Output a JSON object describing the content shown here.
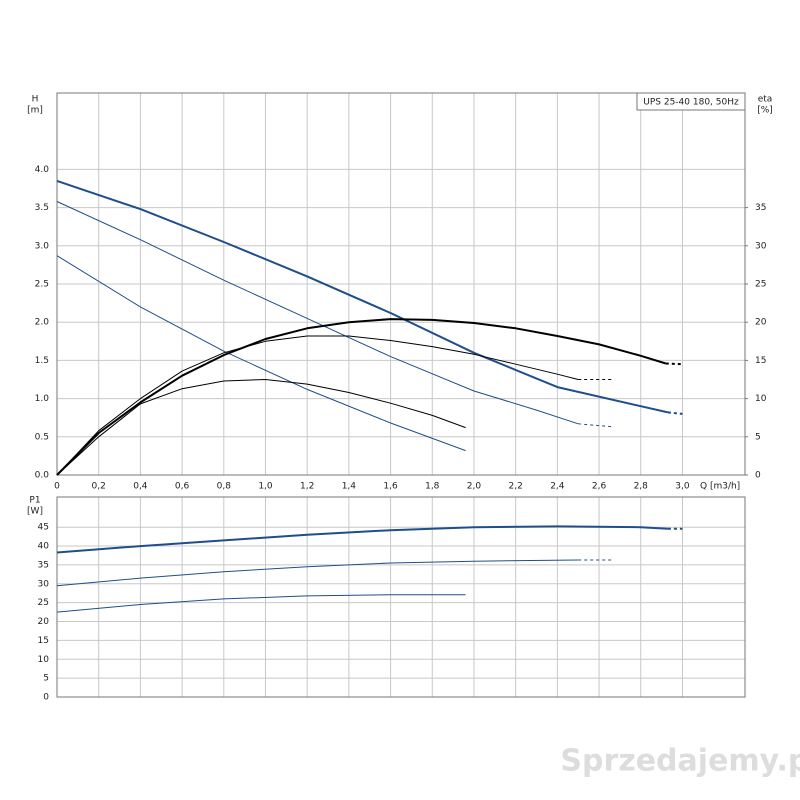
{
  "chart_data": [
    {
      "type": "line",
      "legend_label": "UPS 25-40 180, 50Hz",
      "y_label": "H",
      "y_unit": "[m]",
      "y2_label": "eta",
      "y2_unit": "[%]",
      "x_label": "Q [m3/h]",
      "xlim": [
        0,
        3.3
      ],
      "ylim": [
        0,
        5.0
      ],
      "y2lim": [
        0,
        50
      ],
      "grid": true,
      "xticks": [
        {
          "value": 0,
          "label": "0"
        },
        {
          "value": 0.2,
          "label": "0,2"
        },
        {
          "value": 0.4,
          "label": "0,4"
        },
        {
          "value": 0.6,
          "label": "0,6"
        },
        {
          "value": 0.8,
          "label": "0,8"
        },
        {
          "value": 1.0,
          "label": "1,0"
        },
        {
          "value": 1.2,
          "label": "1,2"
        },
        {
          "value": 1.4,
          "label": "1,4"
        },
        {
          "value": 1.6,
          "label": "1,6"
        },
        {
          "value": 1.8,
          "label": "1,8"
        },
        {
          "value": 2.0,
          "label": "2,0"
        },
        {
          "value": 2.2,
          "label": "2,2"
        },
        {
          "value": 2.4,
          "label": "2,4"
        },
        {
          "value": 2.6,
          "label": "2,6"
        },
        {
          "value": 2.8,
          "label": "2,8"
        },
        {
          "value": 3.0,
          "label": "3,0"
        }
      ],
      "yticks": [
        {
          "value": 0,
          "label": "0.0"
        },
        0.5,
        {
          "value": 1,
          "label": "1.0"
        },
        1.5,
        {
          "value": 2,
          "label": "2.0"
        },
        2.5,
        {
          "value": 3,
          "label": "3.0"
        },
        3.5,
        {
          "value": 4,
          "label": "4.0"
        }
      ],
      "y2ticks": [
        0,
        5,
        10,
        15,
        20,
        25,
        30,
        35
      ],
      "series": [
        {
          "color": "#1f4e8c",
          "width": 2,
          "style": "solid",
          "x": [
            0,
            0.4,
            0.8,
            1.2,
            1.6,
            2.0,
            2.4,
            2.8,
            2.93
          ],
          "values": [
            3.85,
            3.48,
            3.05,
            2.6,
            2.12,
            1.6,
            1.15,
            0.9,
            0.82
          ]
        },
        {
          "color": "#1f4e8c",
          "width": 2,
          "style": "dashed",
          "x": [
            2.93,
            3.0
          ],
          "values": [
            0.82,
            0.8
          ]
        },
        {
          "color": "#1f4e8c",
          "width": 1,
          "style": "solid",
          "x": [
            0,
            0.4,
            0.8,
            1.2,
            1.6,
            2.0,
            2.3,
            2.5
          ],
          "values": [
            3.58,
            3.08,
            2.55,
            2.05,
            1.55,
            1.1,
            0.85,
            0.67
          ]
        },
        {
          "color": "#1f4e8c",
          "width": 1,
          "style": "dashed",
          "x": [
            2.5,
            2.67
          ],
          "values": [
            0.67,
            0.63
          ]
        },
        {
          "color": "#1f4e8c",
          "width": 1,
          "style": "solid",
          "x": [
            0,
            0.4,
            0.8,
            1.2,
            1.6,
            1.96
          ],
          "values": [
            2.87,
            2.2,
            1.62,
            1.12,
            0.68,
            0.32
          ]
        },
        {
          "color": "#000000",
          "width": 2,
          "style": "solid",
          "axis": "y2",
          "x": [
            0,
            0.2,
            0.4,
            0.6,
            0.8,
            1.0,
            1.2,
            1.4,
            1.6,
            1.8,
            2.0,
            2.2,
            2.4,
            2.6,
            2.8,
            2.92
          ],
          "values": [
            0,
            5.5,
            9.5,
            13,
            15.7,
            17.8,
            19.2,
            20,
            20.4,
            20.3,
            19.9,
            19.2,
            18.2,
            17.1,
            15.6,
            14.6
          ]
        },
        {
          "color": "#000000",
          "width": 2,
          "style": "dashed",
          "axis": "y2",
          "x": [
            2.92,
            3.0
          ],
          "values": [
            14.6,
            14.5
          ]
        },
        {
          "color": "#000000",
          "width": 1,
          "style": "solid",
          "axis": "y2",
          "x": [
            0,
            0.2,
            0.4,
            0.6,
            0.8,
            1.0,
            1.2,
            1.4,
            1.6,
            1.8,
            2.0,
            2.2,
            2.4,
            2.5
          ],
          "values": [
            0,
            5.8,
            10,
            13.6,
            16,
            17.5,
            18.2,
            18.2,
            17.6,
            16.8,
            15.8,
            14.5,
            13.2,
            12.5
          ]
        },
        {
          "color": "#000000",
          "width": 1,
          "style": "dashed",
          "axis": "y2",
          "x": [
            2.5,
            2.67
          ],
          "values": [
            12.5,
            12.5
          ]
        },
        {
          "color": "#000000",
          "width": 1,
          "style": "solid",
          "axis": "y2",
          "x": [
            0,
            0.2,
            0.4,
            0.6,
            0.8,
            1.0,
            1.2,
            1.4,
            1.6,
            1.8,
            1.96
          ],
          "values": [
            0,
            5,
            9.3,
            11.3,
            12.3,
            12.5,
            11.9,
            10.8,
            9.4,
            7.8,
            6.2
          ]
        }
      ]
    },
    {
      "type": "line",
      "y_label": "P1",
      "y_unit": "[W]",
      "xlim": [
        0,
        3.3
      ],
      "ylim": [
        0,
        53
      ],
      "grid": true,
      "yticks": [
        0,
        5,
        10,
        15,
        20,
        25,
        30,
        35,
        40,
        45
      ],
      "series": [
        {
          "color": "#1f4e8c",
          "width": 2,
          "style": "solid",
          "x": [
            0,
            0.4,
            0.8,
            1.2,
            1.6,
            2.0,
            2.4,
            2.8,
            2.93
          ],
          "values": [
            38.3,
            40,
            41.5,
            43,
            44.2,
            45,
            45.2,
            45,
            44.6
          ]
        },
        {
          "color": "#1f4e8c",
          "width": 2,
          "style": "dashed",
          "x": [
            2.93,
            3.0
          ],
          "values": [
            44.6,
            44.6
          ]
        },
        {
          "color": "#1f4e8c",
          "width": 1,
          "style": "solid",
          "x": [
            0,
            0.4,
            0.8,
            1.2,
            1.6,
            2.0,
            2.5
          ],
          "values": [
            29.5,
            31.5,
            33.2,
            34.5,
            35.5,
            36,
            36.3
          ]
        },
        {
          "color": "#1f4e8c",
          "width": 1,
          "style": "dashed",
          "x": [
            2.5,
            2.67
          ],
          "values": [
            36.3,
            36.3
          ]
        },
        {
          "color": "#1f4e8c",
          "width": 1,
          "style": "solid",
          "x": [
            0,
            0.4,
            0.8,
            1.2,
            1.6,
            1.96
          ],
          "values": [
            22.5,
            24.5,
            26,
            26.8,
            27.1,
            27.1
          ]
        }
      ]
    }
  ],
  "watermark": "Sprzedajemy.pl"
}
